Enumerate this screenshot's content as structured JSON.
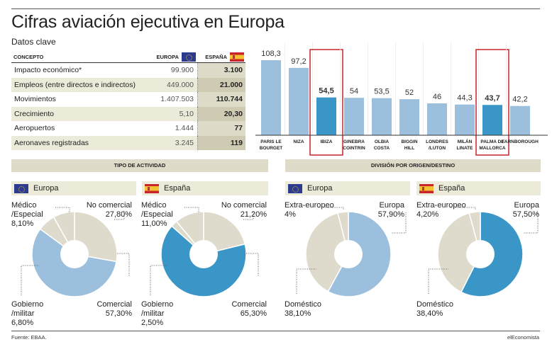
{
  "header": {
    "title": "Cifras aviación ejecutiva en Europa",
    "subtitle": "Datos clave"
  },
  "table": {
    "col_concept": "CONCEPTO",
    "col_europe": "EUROPA",
    "col_spain": "ESPAÑA",
    "rows": [
      {
        "concept": "Impacto económico*",
        "europe": "99.900",
        "spain": "3.100"
      },
      {
        "concept": "Empleos (entre directos e indirectos)",
        "europe": "449.000",
        "spain": "21.000"
      },
      {
        "concept": "Movimientos",
        "europe": "1.407.503",
        "spain": "110.744"
      },
      {
        "concept": "Crecimiento",
        "europe": "5,10",
        "spain": "20,30"
      },
      {
        "concept": "Aeropuertos",
        "europe": "1.444",
        "spain": "77"
      },
      {
        "concept": "Aeronaves registradas",
        "europe": "3.245",
        "spain": "119"
      }
    ]
  },
  "sections": {
    "activity": "TIPO DE ACTIVIDAD",
    "origin": "DIVISIÓN POR ORIGEN/DESTINO",
    "europe_label": "Europa",
    "spain_label": "España"
  },
  "colors": {
    "light_blue": "#9bbfdd",
    "dark_blue": "#3a96c6",
    "beige": "#dedbcc",
    "highlight_red": "#c8242a"
  },
  "chart_data": [
    {
      "type": "bar",
      "title": "",
      "categories": [
        "PARIS LE BOURGET",
        "NIZA",
        "IBIZA",
        "GINEBRA COINTRIN",
        "OLBIA COSTA",
        "BIGGIN HILL",
        "LONDRES /LUTON",
        "MILÁN LINATE",
        "PALMA DE MALLORCA",
        "FARNBOROUGH"
      ],
      "category_lines": [
        [
          "PARIS LE",
          "BOURGET"
        ],
        [
          "NIZA"
        ],
        [
          "IBIZA"
        ],
        [
          "GINEBRA",
          "COINTRIN"
        ],
        [
          "OLBIA",
          "COSTA"
        ],
        [
          "BIGGIN",
          "HILL"
        ],
        [
          "LONDRES",
          "/LUTON"
        ],
        [
          "MILÁN",
          "LINATE"
        ],
        [
          "PALMA DE",
          "MALLORCA"
        ],
        [
          "FARNBOROUGH"
        ]
      ],
      "values": [
        108.3,
        97.2,
        54.5,
        54,
        53.5,
        52,
        46,
        44.3,
        43.7,
        42.2
      ],
      "value_labels": [
        "108,3",
        "97,2",
        "54,5",
        "54",
        "53,5",
        "52",
        "46",
        "44,3",
        "43,7",
        "42,2"
      ],
      "highlighted": [
        "IBIZA",
        "PALMA DE MALLORCA"
      ],
      "xlabel": "",
      "ylabel": "",
      "ylim": [
        0,
        110
      ],
      "grid": false
    },
    {
      "type": "pie",
      "title": "Tipo de actividad - Europa",
      "labels": [
        "No comercial",
        "Comercial",
        "Gobierno /militar",
        "Médico /Especial"
      ],
      "values": [
        27.8,
        57.3,
        6.8,
        8.1
      ],
      "value_labels": [
        "27,80%",
        "57,30%",
        "6,80%",
        "8,10%"
      ],
      "highlight": "Comercial"
    },
    {
      "type": "pie",
      "title": "Tipo de actividad - España",
      "labels": [
        "No comercial",
        "Comercial",
        "Gobierno /militar",
        "Médico /Especial"
      ],
      "values": [
        21.2,
        65.3,
        2.5,
        11.0
      ],
      "value_labels": [
        "21,20%",
        "65,30%",
        "2,50%",
        "11,00%"
      ],
      "highlight": "Comercial"
    },
    {
      "type": "pie",
      "title": "División por origen/destino - Europa",
      "labels": [
        "Europa",
        "Doméstico",
        "Extra-europeo"
      ],
      "values": [
        57.9,
        38.1,
        4.0
      ],
      "value_labels": [
        "57,90%",
        "38,10%",
        "4%"
      ],
      "highlight": "Europa"
    },
    {
      "type": "pie",
      "title": "División por origen/destino - España",
      "labels": [
        "Europa",
        "Doméstico",
        "Extra-europeo"
      ],
      "values": [
        57.5,
        38.4,
        4.2
      ],
      "value_labels": [
        "57,50%",
        "38,40%",
        "4,20%"
      ],
      "highlight": "Europa"
    }
  ],
  "donut_labels": {
    "act_eu": {
      "medico": [
        "Médico",
        "/Especial",
        "8,10%"
      ],
      "nocom": [
        "No comercial",
        "27,80%"
      ],
      "gob": [
        "Gobierno",
        "/militar",
        "6,80%"
      ],
      "com": [
        "Comercial",
        "57,30%"
      ]
    },
    "act_es": {
      "medico": [
        "Médico",
        "/Especial",
        "11,00%"
      ],
      "nocom": [
        "No comercial",
        "21,20%"
      ],
      "gob": [
        "Gobierno",
        "/militar",
        "2,50%"
      ],
      "com": [
        "Comercial",
        "65,30%"
      ]
    },
    "org_eu": {
      "extra": [
        "Extra-europeo",
        "4%"
      ],
      "europa": [
        "Europa",
        "57,90%"
      ],
      "dom": [
        "Doméstico",
        "38,10%"
      ]
    },
    "org_es": {
      "extra": [
        "Extra-europeo",
        "4,20%"
      ],
      "europa": [
        "Europa",
        "57,50%"
      ],
      "dom": [
        "Doméstico",
        "38,40%"
      ]
    }
  },
  "footer": {
    "source": "Fuente: EBAA.",
    "brand": "elEconomista"
  }
}
